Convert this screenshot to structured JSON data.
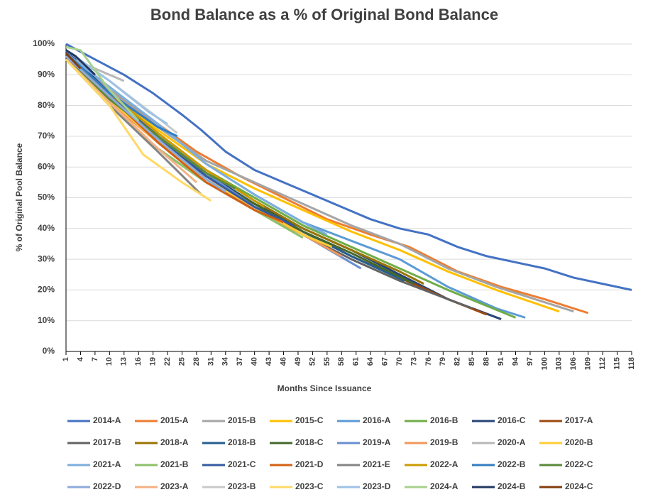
{
  "chart_data": {
    "type": "line",
    "title": "Bond Balance as a % of Original Bond Balance",
    "x_label": "Months Since Issuance",
    "y_label": "% of Original Pool Balance",
    "xlim": [
      1,
      118
    ],
    "xticks": [
      1,
      4,
      7,
      10,
      13,
      16,
      19,
      22,
      25,
      28,
      31,
      34,
      37,
      40,
      43,
      46,
      49,
      52,
      55,
      58,
      61,
      64,
      67,
      70,
      73,
      76,
      79,
      82,
      85,
      88,
      91,
      94,
      97,
      100,
      103,
      106,
      109,
      112,
      115,
      118
    ],
    "ylim": [
      0,
      100
    ],
    "yticks": [
      {
        "value": 0,
        "label": "0%"
      },
      {
        "value": 10,
        "label": "10%"
      },
      {
        "value": 20,
        "label": "20%"
      },
      {
        "value": 30,
        "label": "30%"
      },
      {
        "value": 40,
        "label": "40%"
      },
      {
        "value": 50,
        "label": "50%"
      },
      {
        "value": 60,
        "label": "60%"
      },
      {
        "value": 70,
        "label": "70%"
      },
      {
        "value": 80,
        "label": "80%"
      },
      {
        "value": 90,
        "label": "90%"
      },
      {
        "value": 100,
        "label": "100%"
      }
    ],
    "grid": true,
    "legend": "bottom",
    "series": [
      {
        "name": "2014-A",
        "color": "#4472c4",
        "x": [
          1,
          7,
          13,
          19,
          25,
          29,
          34,
          40,
          46,
          52,
          58,
          64,
          70,
          76,
          82,
          88,
          94,
          100,
          106,
          112,
          118
        ],
        "values": [
          100,
          95,
          90,
          84,
          77,
          72,
          65,
          59,
          55,
          51,
          47,
          43,
          40,
          38,
          34,
          31,
          29,
          27,
          24,
          22,
          20
        ]
      },
      {
        "name": "2015-A",
        "color": "#ed7d31",
        "x": [
          1,
          10,
          20,
          28,
          37,
          46,
          55,
          64,
          72,
          82,
          91,
          100,
          109
        ],
        "values": [
          96,
          85,
          74,
          65,
          57,
          50,
          43,
          38,
          34,
          26,
          21,
          17,
          12.5
        ]
      },
      {
        "name": "2015-B",
        "color": "#a5a5a5",
        "x": [
          1,
          10,
          20,
          30,
          40,
          50,
          60,
          70,
          80,
          90,
          100,
          106
        ],
        "values": [
          97,
          85,
          73,
          62,
          55,
          48,
          41,
          35,
          27,
          21,
          16,
          13
        ]
      },
      {
        "name": "2015-C",
        "color": "#ffc000",
        "x": [
          1,
          10,
          20,
          30,
          40,
          50,
          60,
          70,
          80,
          90,
          103
        ],
        "values": [
          96,
          84,
          72,
          61,
          53,
          46,
          39,
          33,
          26,
          20,
          13
        ]
      },
      {
        "name": "2016-A",
        "color": "#5b9bd5",
        "x": [
          1,
          10,
          20,
          30,
          40,
          50,
          60,
          70,
          80,
          90,
          96
        ],
        "values": [
          97,
          86,
          74,
          61,
          51,
          42,
          36,
          30,
          21,
          14,
          11
        ]
      },
      {
        "name": "2016-B",
        "color": "#70ad47",
        "x": [
          1,
          10,
          20,
          30,
          40,
          50,
          60,
          70,
          80,
          94
        ],
        "values": [
          96,
          84,
          71,
          59,
          50,
          41,
          34,
          27,
          20,
          11
        ]
      },
      {
        "name": "2016-C",
        "color": "#264478",
        "x": [
          1,
          10,
          20,
          30,
          40,
          50,
          60,
          70,
          80,
          91
        ],
        "values": [
          98,
          84,
          70,
          58,
          48,
          40,
          33,
          25,
          17,
          10.5
        ]
      },
      {
        "name": "2017-A",
        "color": "#9e480e",
        "x": [
          1,
          10,
          20,
          30,
          40,
          50,
          60,
          70,
          80,
          88
        ],
        "values": [
          95,
          82,
          68,
          56,
          47,
          39,
          31,
          24,
          17,
          12
        ]
      },
      {
        "name": "2017-B",
        "color": "#636363",
        "x": [
          1,
          10,
          20,
          30,
          40,
          50,
          60,
          70,
          80,
          85
        ],
        "values": [
          95,
          80,
          66,
          55,
          46,
          38,
          30,
          23,
          17,
          14
        ]
      },
      {
        "name": "2018-A",
        "color": "#997300",
        "x": [
          1,
          10,
          20,
          30,
          40,
          50,
          60,
          70,
          75
        ],
        "values": [
          96,
          84,
          71,
          59,
          49,
          40,
          33,
          26,
          22
        ]
      },
      {
        "name": "2018-B",
        "color": "#255e91",
        "x": [
          1,
          10,
          20,
          30,
          40,
          50,
          60,
          71
        ],
        "values": [
          95,
          82,
          69,
          57,
          48,
          39,
          31,
          23
        ]
      },
      {
        "name": "2018-C",
        "color": "#43682b",
        "x": [
          1,
          10,
          20,
          30,
          40,
          50,
          60,
          73
        ],
        "values": [
          95,
          83,
          70,
          57,
          48,
          39,
          32,
          22
        ]
      },
      {
        "name": "2019-A",
        "color": "#698ed0",
        "x": [
          1,
          10,
          20,
          30,
          40,
          50,
          62
        ],
        "values": [
          96,
          84,
          71,
          58,
          47,
          38,
          27
        ]
      },
      {
        "name": "2019-B",
        "color": "#f1975a",
        "x": [
          1,
          10,
          20,
          30,
          40,
          50,
          58
        ],
        "values": [
          95,
          81,
          68,
          56,
          46,
          38,
          31
        ]
      },
      {
        "name": "2020-A",
        "color": "#b7b7b7",
        "x": [
          1,
          7,
          13
        ],
        "values": [
          96,
          92,
          88
        ]
      },
      {
        "name": "2020-B",
        "color": "#ffcd33",
        "x": [
          1,
          10,
          20,
          30,
          40,
          50,
          56
        ],
        "values": [
          96,
          82,
          68,
          56,
          47,
          38,
          34
        ]
      },
      {
        "name": "2021-A",
        "color": "#7cafdd",
        "x": [
          1,
          10,
          20,
          30,
          40,
          50,
          55
        ],
        "values": [
          97,
          86,
          74,
          61,
          51,
          42,
          38
        ]
      },
      {
        "name": "2021-B",
        "color": "#8cc168",
        "x": [
          1,
          10,
          20,
          30,
          40,
          50
        ],
        "values": [
          95,
          80,
          66,
          55,
          46,
          37
        ]
      },
      {
        "name": "2021-C",
        "color": "#335aa1",
        "x": [
          1,
          10,
          20,
          30,
          40,
          48
        ],
        "values": [
          96,
          84,
          70,
          57,
          47,
          41
        ]
      },
      {
        "name": "2021-D",
        "color": "#d26012",
        "x": [
          1,
          10,
          20,
          30,
          40,
          46
        ],
        "values": [
          95,
          83,
          68,
          55,
          46,
          42
        ]
      },
      {
        "name": "2021-E",
        "color": "#848484",
        "x": [
          1,
          10,
          20,
          29
        ],
        "values": [
          95,
          80,
          65,
          51
        ]
      },
      {
        "name": "2022-A",
        "color": "#cc9a00",
        "x": [
          1,
          10,
          20,
          30,
          40,
          42
        ],
        "values": [
          96,
          84,
          71,
          59,
          49,
          47
        ]
      },
      {
        "name": "2022-B",
        "color": "#327dc2",
        "x": [
          1,
          10,
          20,
          24
        ],
        "values": [
          97,
          84,
          73,
          70
        ]
      },
      {
        "name": "2022-C",
        "color": "#5a8a39",
        "x": [
          1,
          10,
          20,
          30,
          36
        ],
        "values": [
          95,
          82,
          70,
          58,
          53
        ]
      },
      {
        "name": "2022-D",
        "color": "#8faadc",
        "x": [
          1,
          10,
          20,
          30,
          34
        ],
        "values": [
          96,
          83,
          69,
          56,
          52
        ]
      },
      {
        "name": "2023-A",
        "color": "#f4b183",
        "x": [
          1,
          10,
          20,
          28
        ],
        "values": [
          95,
          81,
          66,
          55
        ]
      },
      {
        "name": "2023-B",
        "color": "#c9c9c9",
        "x": [
          1,
          10,
          20,
          24
        ],
        "values": [
          98,
          88,
          76,
          71
        ]
      },
      {
        "name": "2023-C",
        "color": "#ffd966",
        "x": [
          1,
          10,
          17,
          25,
          31
        ],
        "values": [
          95,
          80,
          64,
          55,
          49
        ]
      },
      {
        "name": "2023-D",
        "color": "#9dc3e6",
        "x": [
          1,
          10,
          18,
          22
        ],
        "values": [
          98,
          88,
          78,
          74
        ]
      },
      {
        "name": "2024-A",
        "color": "#a9d18e",
        "x": [
          1,
          4,
          10,
          16
        ],
        "values": [
          99,
          98,
          85,
          75
        ]
      },
      {
        "name": "2024-B",
        "color": "#203864",
        "x": [
          1,
          3,
          7
        ],
        "values": [
          98,
          96,
          90
        ]
      },
      {
        "name": "2024-C",
        "color": "#843c0c",
        "x": [
          1,
          4
        ],
        "values": [
          97,
          92
        ]
      }
    ]
  }
}
